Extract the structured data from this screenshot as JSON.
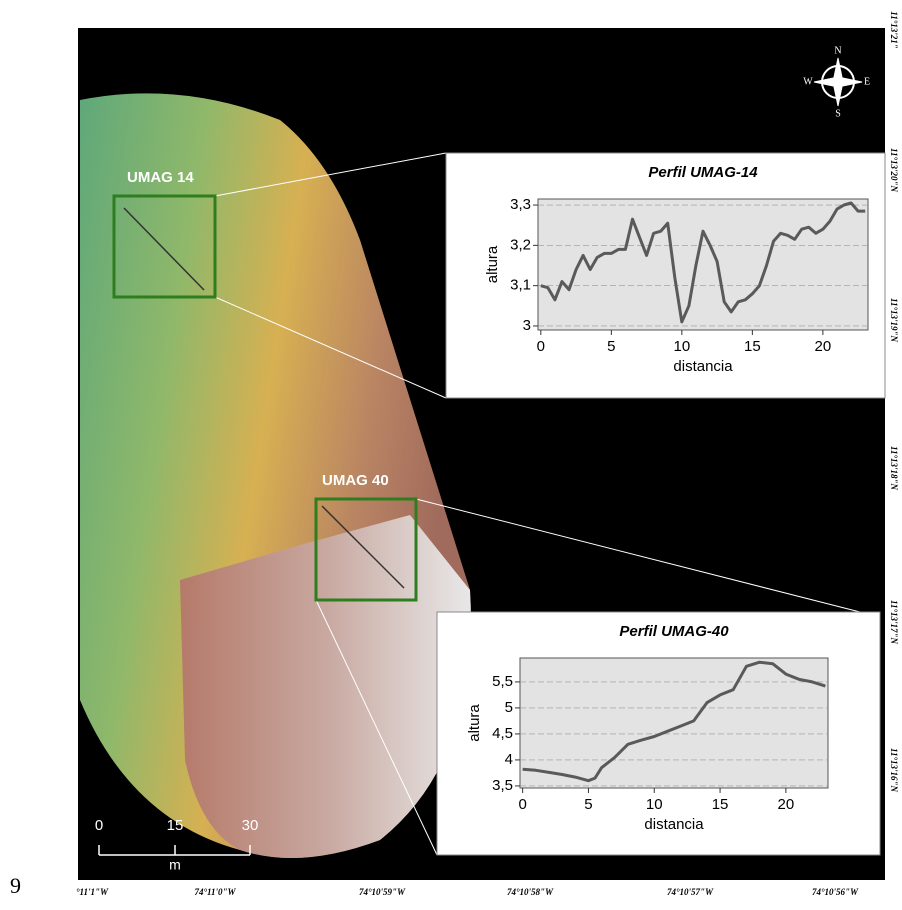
{
  "page_number": "9",
  "map": {
    "labels": [
      "UMAG 14",
      "UMAG 40"
    ],
    "compass": {
      "n": "N",
      "s": "S",
      "e": "E",
      "w": "W"
    },
    "scale": {
      "ticks": [
        "0",
        "15",
        "30"
      ],
      "unit": "m"
    },
    "longitudes": [
      "°11'1\"W",
      "74°11'0\"W",
      "74°10'59\"W",
      "74°10'58\"W",
      "74°10'57\"W",
      "74°10'56\"W"
    ],
    "latitudes": [
      "11°13'21\"",
      "11°13'20\"N",
      "11°13'19\"N",
      "11°13'18\"N",
      "11°13'17\"N",
      "11°13'16\"N"
    ]
  },
  "chart_data": [
    {
      "type": "line",
      "title": "Perfil UMAG-14",
      "x_label": "distancia",
      "y_label": "altura",
      "x": [
        0,
        0.5,
        1,
        1.5,
        2,
        2.5,
        3,
        3.5,
        4,
        4.5,
        5,
        5.5,
        6,
        6.5,
        7,
        7.5,
        8,
        8.5,
        9,
        9.5,
        10,
        10.5,
        11,
        11.5,
        12,
        12.5,
        13,
        13.5,
        14,
        14.5,
        15,
        15.5,
        16,
        16.5,
        17,
        17.5,
        18,
        18.5,
        19,
        19.5,
        20,
        20.5,
        21,
        21.5,
        22,
        22.5,
        23
      ],
      "values": [
        3.1,
        3.095,
        3.065,
        3.11,
        3.09,
        3.14,
        3.175,
        3.14,
        3.17,
        3.18,
        3.18,
        3.19,
        3.19,
        3.265,
        3.22,
        3.175,
        3.23,
        3.235,
        3.255,
        3.12,
        3.01,
        3.05,
        3.15,
        3.235,
        3.2,
        3.16,
        3.06,
        3.035,
        3.06,
        3.065,
        3.08,
        3.1,
        3.15,
        3.21,
        3.23,
        3.225,
        3.215,
        3.24,
        3.245,
        3.23,
        3.24,
        3.26,
        3.29,
        3.3,
        3.305,
        3.285,
        3.285
      ],
      "color": "#5a5a5a",
      "xlim": [
        -0.2,
        23.2
      ],
      "xticks": [
        0,
        5,
        10,
        15,
        20
      ],
      "ylim": [
        2.99,
        3.315
      ],
      "yticks": [
        3,
        {
          "value": 3.1,
          "label": "3,1"
        },
        {
          "value": 3.2,
          "label": "3,2"
        },
        {
          "value": 3.3,
          "label": "3,3"
        }
      ],
      "grid": true
    },
    {
      "type": "line",
      "title": "Perfil UMAG-40",
      "x_label": "distancia",
      "y_label": "altura",
      "x": [
        0,
        1,
        2,
        3,
        4,
        5,
        5.5,
        6,
        7,
        8,
        9,
        10,
        11,
        12,
        13,
        14,
        15,
        16,
        17,
        18,
        19,
        20,
        21,
        22,
        23
      ],
      "values": [
        3.82,
        3.8,
        3.76,
        3.72,
        3.67,
        3.6,
        3.65,
        3.85,
        4.05,
        4.3,
        4.38,
        4.45,
        4.55,
        4.65,
        4.75,
        5.1,
        5.25,
        5.35,
        5.8,
        5.88,
        5.85,
        5.65,
        5.55,
        5.5,
        5.42
      ],
      "color": "#5a5a5a",
      "xlim": [
        -0.2,
        23.2
      ],
      "xticks": [
        0,
        5,
        10,
        15,
        20
      ],
      "ylim": [
        3.46,
        5.96
      ],
      "yticks": [
        {
          "value": 3.5,
          "label": "3,5"
        },
        4,
        {
          "value": 4.5,
          "label": "4,5"
        },
        5,
        {
          "value": 5.5,
          "label": "5,5"
        }
      ],
      "grid": true
    }
  ]
}
